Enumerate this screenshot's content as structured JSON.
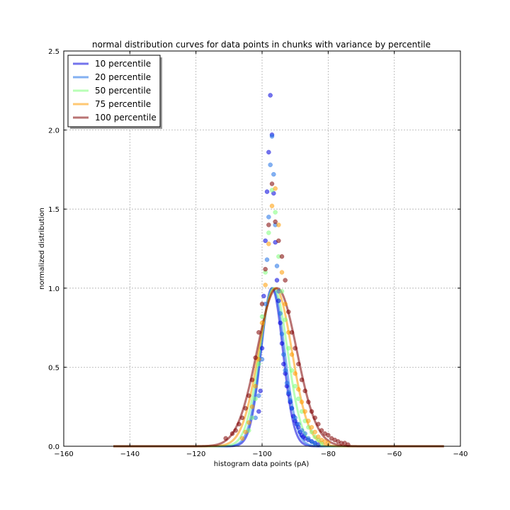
{
  "chart_data": {
    "type": "scatter",
    "title": "normal distribution curves for data points in chunks with variance by percentile",
    "xlabel": "histogram data points (pA)",
    "ylabel": "normalized distribution",
    "xlim": [
      -160,
      -40
    ],
    "ylim": [
      0.0,
      2.5
    ],
    "xticks": [
      -160,
      -140,
      -120,
      -100,
      -80,
      -60,
      -40
    ],
    "yticks": [
      0.0,
      0.5,
      1.0,
      1.5,
      2.0,
      2.5
    ],
    "xtick_labels": [
      "−160",
      "−140",
      "−120",
      "−100",
      "−80",
      "−60",
      "−40"
    ],
    "ytick_labels": [
      "0.0",
      "0.5",
      "1.0",
      "1.5",
      "2.0",
      "2.5"
    ],
    "grid": true,
    "legend_position": "top-left",
    "curve_x_range": [
      -145,
      -45
    ],
    "series": [
      {
        "name": "10 percentile",
        "color": "#0000dd",
        "curve": {
          "mean": -97,
          "sigma": 3.3
        },
        "scatter": {
          "x": [
            -101,
            -100.5,
            -100,
            -99.5,
            -99,
            -98.5,
            -98,
            -97.5,
            -97,
            -96.5,
            -96,
            -95.5,
            -95,
            -94.5,
            -94,
            -93.5,
            -93,
            -92.5,
            -92,
            -91.5,
            -91,
            -90.5,
            -90,
            -89.5,
            -89,
            -88.5,
            -88,
            -87.5,
            -87,
            -86,
            -85,
            -84,
            -83
          ],
          "y": [
            0.22,
            0.35,
            0.62,
            0.95,
            1.3,
            1.61,
            1.86,
            2.22,
            1.97,
            1.6,
            1.29,
            1.05,
            0.92,
            0.78,
            0.65,
            0.52,
            0.46,
            0.38,
            0.33,
            0.28,
            0.24,
            0.19,
            0.16,
            0.14,
            0.12,
            0.09,
            0.07,
            0.06,
            0.05,
            0.04,
            0.03,
            0.02,
            0.01
          ]
        }
      },
      {
        "name": "20 percentile",
        "color": "#1e6fe6",
        "curve": {
          "mean": -96.8,
          "sigma": 3.6
        },
        "scatter": {
          "x": [
            -102,
            -101,
            -100,
            -99,
            -98.5,
            -98,
            -97.5,
            -97,
            -96.5,
            -96,
            -95.5,
            -95,
            -94.5,
            -94,
            -93.5,
            -93,
            -92.5,
            -92,
            -91.5,
            -91,
            -90,
            -89,
            -88,
            -87,
            -86,
            -85,
            -84
          ],
          "y": [
            0.18,
            0.32,
            0.55,
            0.9,
            1.18,
            1.45,
            1.78,
            1.96,
            1.72,
            1.4,
            1.14,
            0.98,
            0.84,
            0.71,
            0.58,
            0.48,
            0.4,
            0.34,
            0.29,
            0.24,
            0.18,
            0.14,
            0.1,
            0.08,
            0.05,
            0.03,
            0.02
          ]
        }
      },
      {
        "name": "50 percentile",
        "color": "#7dff7a",
        "curve": {
          "mean": -96.5,
          "sigma": 4.2
        },
        "scatter": {
          "x": [
            -104,
            -103,
            -102,
            -101,
            -100,
            -99,
            -98,
            -97,
            -96,
            -95,
            -94,
            -93,
            -92,
            -91,
            -90,
            -89,
            -88,
            -87,
            -86,
            -85,
            -84,
            -83,
            -82
          ],
          "y": [
            0.1,
            0.18,
            0.3,
            0.52,
            0.82,
            1.1,
            1.35,
            1.62,
            1.48,
            1.2,
            0.98,
            0.8,
            0.62,
            0.48,
            0.38,
            0.3,
            0.22,
            0.16,
            0.12,
            0.09,
            0.06,
            0.04,
            0.02
          ]
        }
      },
      {
        "name": "75 percentile",
        "color": "#ff9b00",
        "curve": {
          "mean": -96,
          "sigma": 5.0
        },
        "scatter": {
          "x": [
            -106,
            -105,
            -104,
            -103,
            -102,
            -101,
            -100,
            -99,
            -98,
            -97,
            -96,
            -95,
            -94,
            -93,
            -92,
            -91,
            -90,
            -89,
            -88,
            -87,
            -86,
            -85,
            -84,
            -83,
            -82,
            -81,
            -80
          ],
          "y": [
            0.05,
            0.09,
            0.15,
            0.25,
            0.38,
            0.55,
            0.78,
            1.02,
            1.28,
            1.52,
            1.63,
            1.4,
            1.1,
            0.9,
            0.72,
            0.58,
            0.46,
            0.36,
            0.28,
            0.22,
            0.16,
            0.12,
            0.09,
            0.06,
            0.04,
            0.03,
            0.02
          ]
        }
      },
      {
        "name": "100 percentile",
        "color": "#800000",
        "curve": {
          "mean": -95.5,
          "sigma": 6.0
        },
        "scatter": {
          "x": [
            -111,
            -109,
            -108,
            -107,
            -106,
            -105,
            -104,
            -103,
            -102,
            -101,
            -100,
            -99,
            -98,
            -97,
            -96,
            -95,
            -94,
            -93,
            -92,
            -91,
            -90,
            -89,
            -88,
            -87,
            -86,
            -85,
            -84,
            -83,
            -82,
            -81,
            -80,
            -79,
            -78,
            -77,
            -76,
            -75,
            -74
          ],
          "y": [
            0.05,
            0.08,
            0.1,
            0.14,
            0.18,
            0.24,
            0.32,
            0.42,
            0.56,
            0.72,
            0.9,
            1.12,
            1.4,
            1.66,
            1.42,
            1.3,
            1.2,
            1.05,
            0.85,
            0.72,
            0.62,
            0.52,
            0.42,
            0.35,
            0.28,
            0.22,
            0.18,
            0.14,
            0.1,
            0.08,
            0.07,
            0.05,
            0.04,
            0.03,
            0.02,
            0.02,
            0.01
          ]
        }
      }
    ]
  }
}
